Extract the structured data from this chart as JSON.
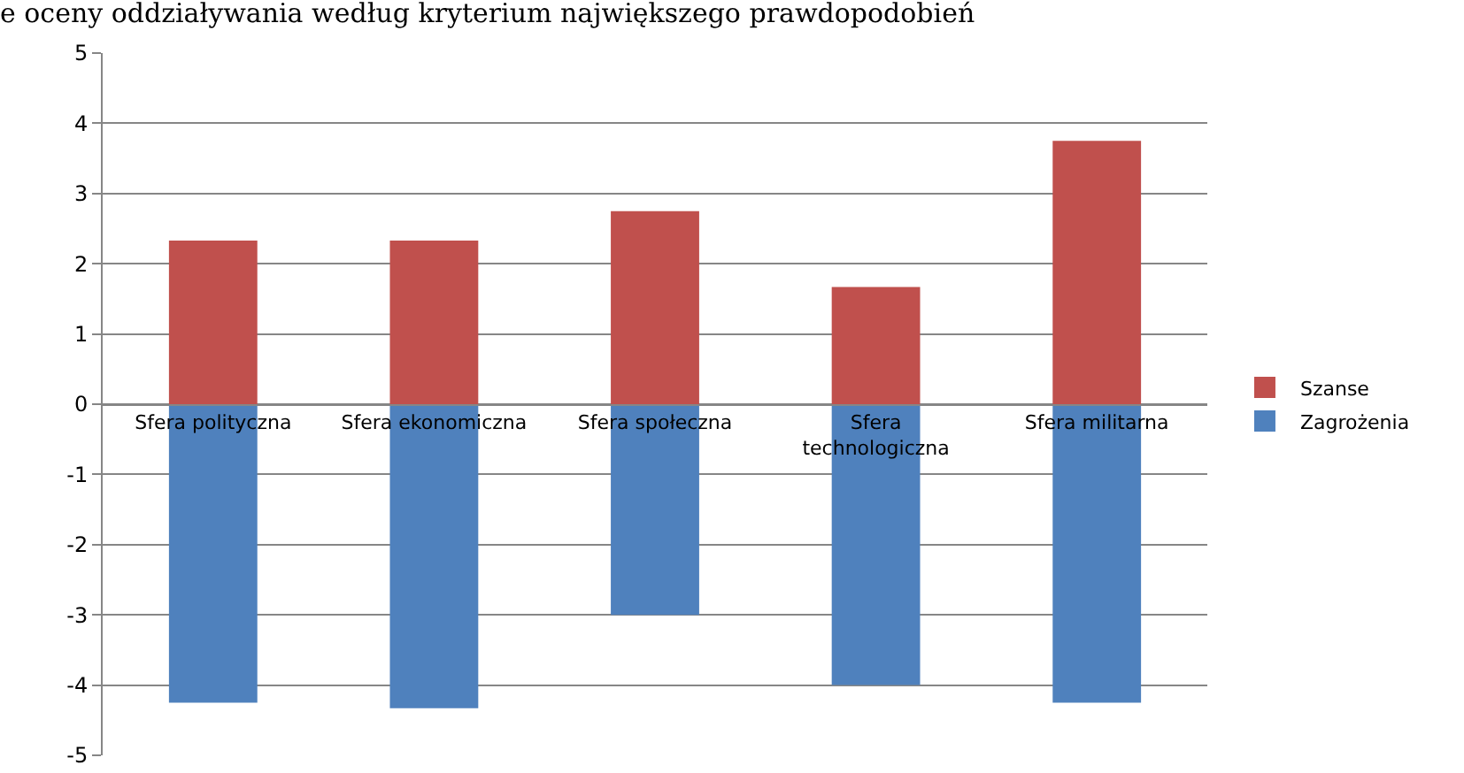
{
  "chart_data": {
    "type": "bar",
    "title": "e oceny oddziaływania według kryterium największego prawdopodobień",
    "categories": [
      "Sfera polityczna",
      "Sfera ekonomiczna",
      "Sfera społeczna",
      "Sfera technologiczna",
      "Sfera militarna"
    ],
    "series": [
      {
        "name": "Szanse",
        "color": "#c0504d",
        "values": [
          2.33,
          2.33,
          2.75,
          1.67,
          3.75
        ]
      },
      {
        "name": "Zagrożenia",
        "color": "#4f81bd",
        "values": [
          -4.25,
          -4.33,
          -3,
          -4,
          -4.25
        ]
      }
    ],
    "stacked": true,
    "ylim": [
      -5,
      5
    ],
    "yticks": [
      -5,
      -4,
      -3,
      -2,
      -1,
      0,
      1,
      2,
      3,
      4,
      5
    ],
    "grid": "y",
    "legend": "right"
  }
}
